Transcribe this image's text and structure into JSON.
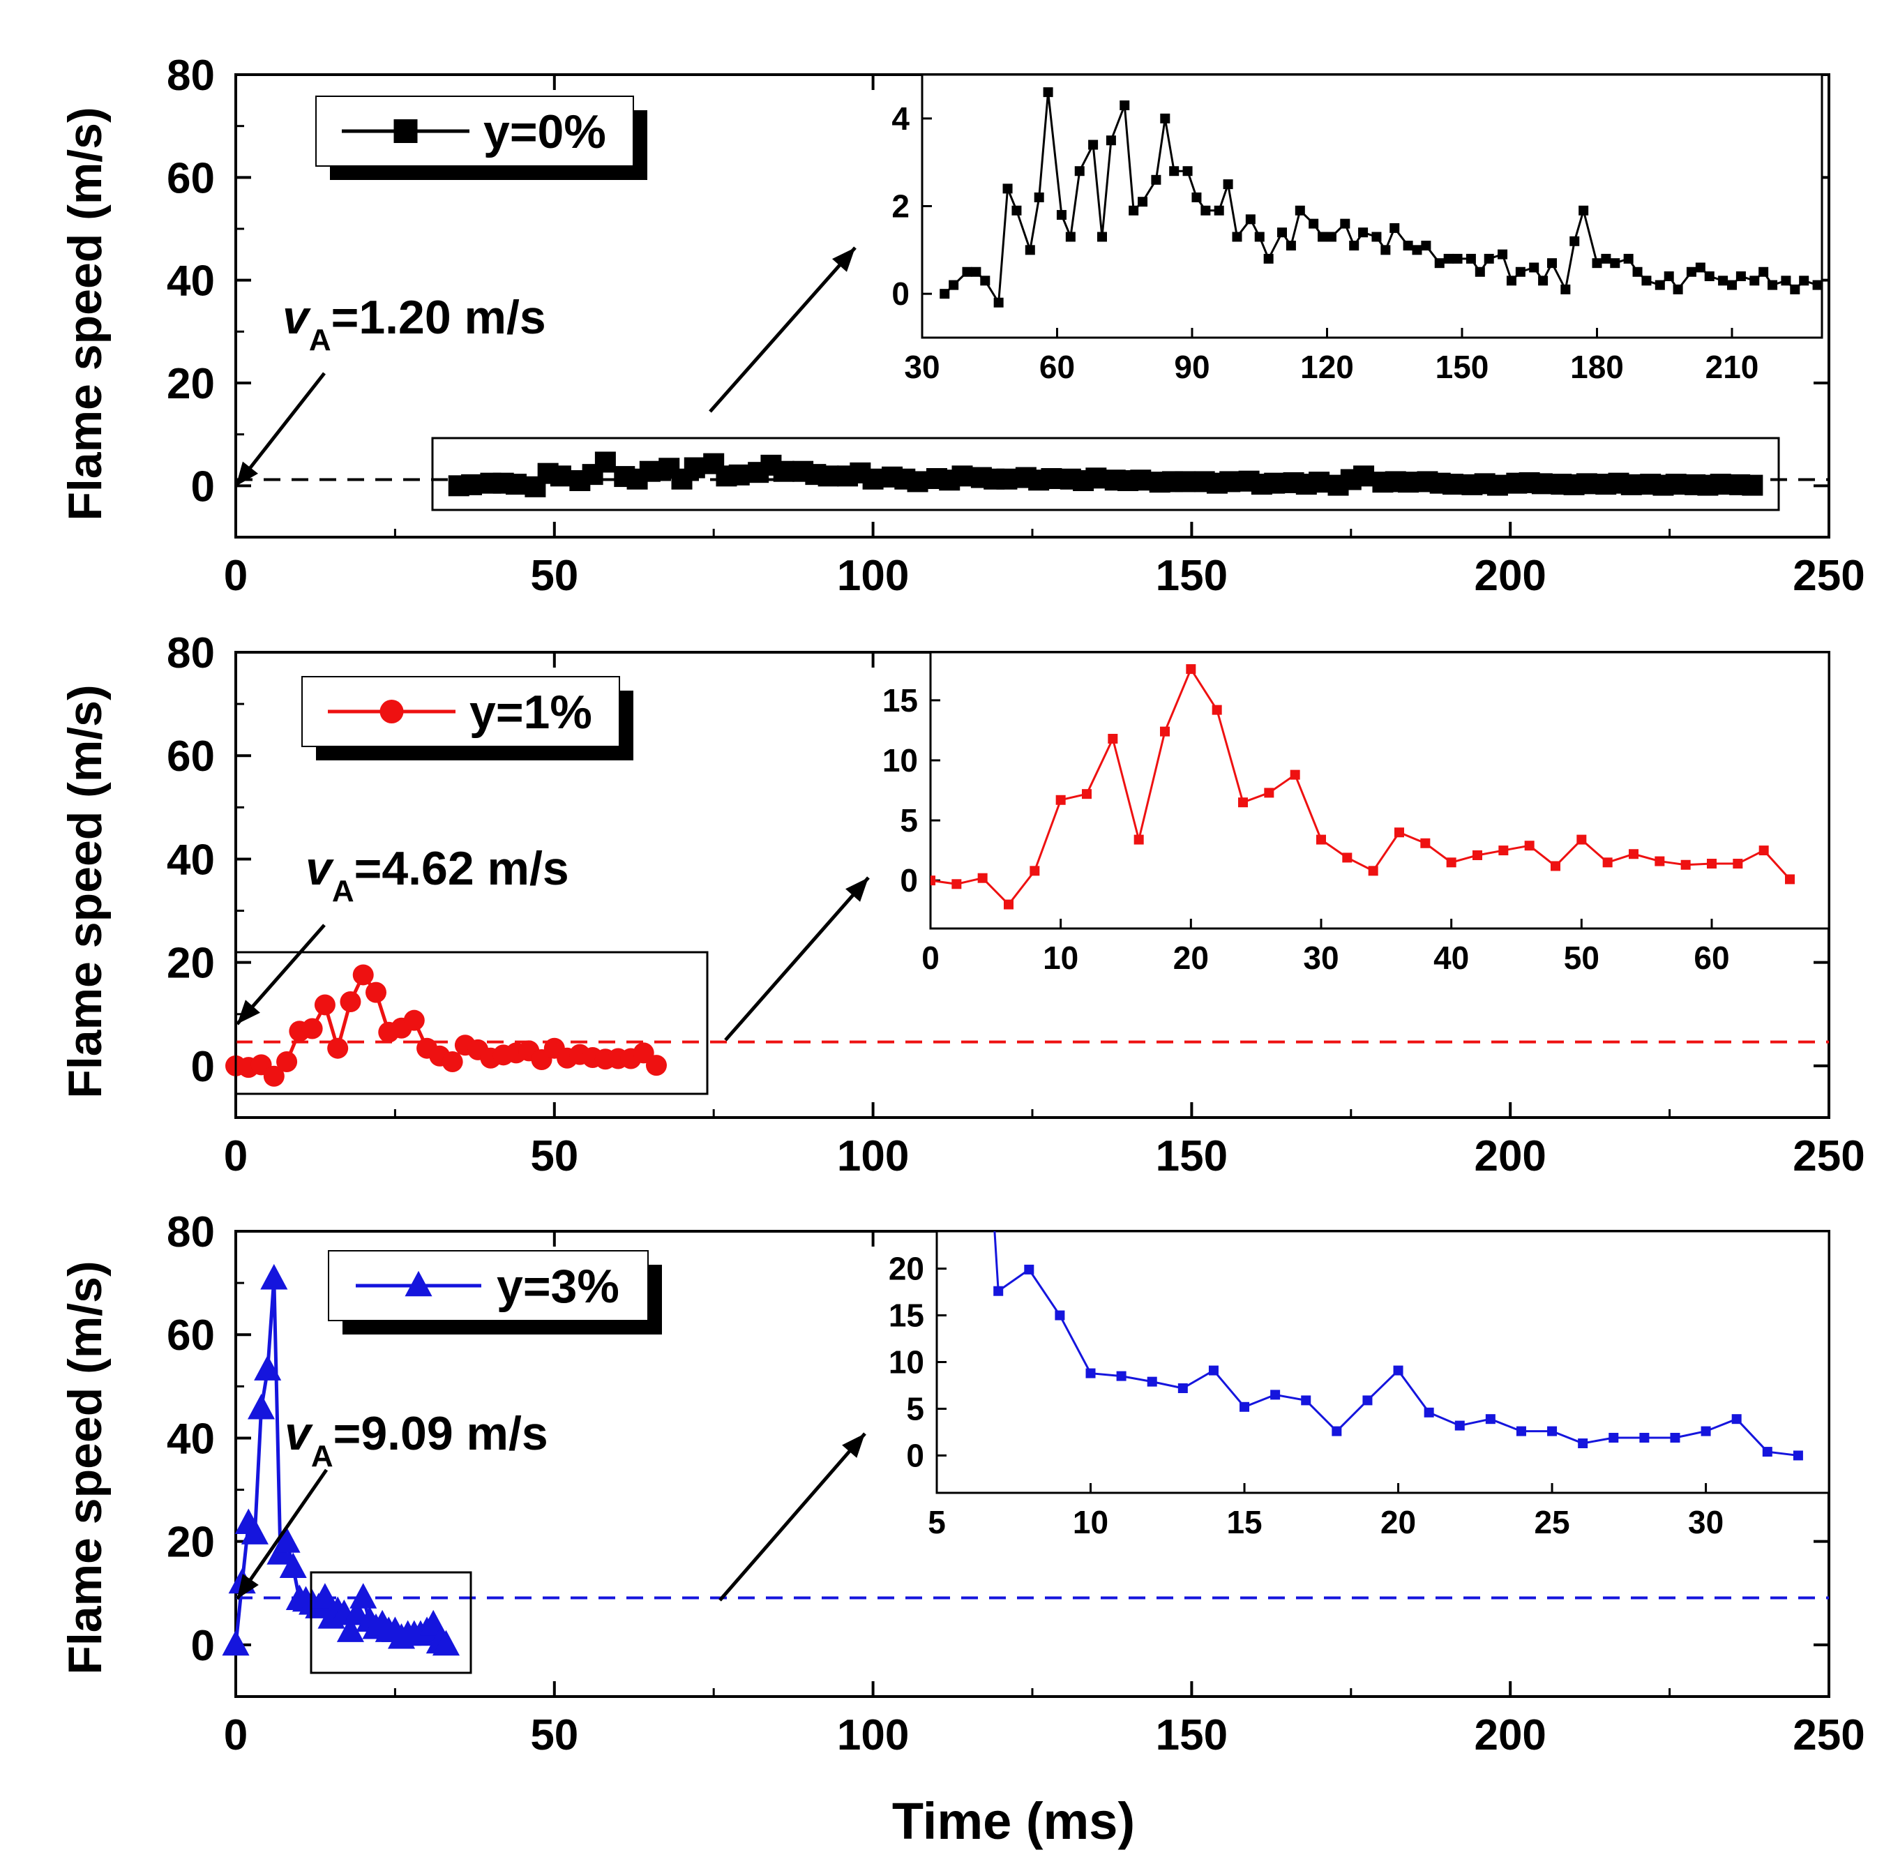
{
  "figure": {
    "xlabel": "Time (ms)",
    "ylabel": "Flame speed (m/s)",
    "panel_count": 3
  },
  "chart_data": [
    {
      "type": "line",
      "panel": "y=0%",
      "series_name": "y=0%",
      "color": "#000000",
      "marker": "square",
      "xlim": [
        0,
        250
      ],
      "ylim": [
        -10,
        80
      ],
      "xticks": [
        "0",
        "50",
        "100",
        "150",
        "200",
        "250"
      ],
      "yticks": [
        "0",
        "20",
        "40",
        "60",
        "80"
      ],
      "xlabel": "",
      "ylabel": "Flame speed (m/s)",
      "annotation": {
        "prefix": "v",
        "subscript": "A",
        "text": "=1.20 m/s",
        "value": 1.2
      },
      "x": [
        35,
        37,
        40,
        42,
        44,
        47,
        49,
        51,
        54,
        56,
        58,
        61,
        63,
        65,
        68,
        70,
        72,
        75,
        77,
        79,
        82,
        84,
        86,
        89,
        91,
        93,
        96,
        98,
        100,
        103,
        105,
        107,
        110,
        112,
        114,
        117,
        119,
        121,
        124,
        126,
        128,
        131,
        133,
        135,
        138,
        140,
        142,
        145,
        147,
        149,
        152,
        154,
        156,
        159,
        161,
        163,
        166,
        168,
        170,
        173,
        175,
        177,
        180,
        182,
        184,
        187,
        189,
        191,
        194,
        196,
        198,
        201,
        203,
        205,
        208,
        210,
        212,
        215,
        217,
        219,
        222,
        224,
        226,
        229,
        231,
        233,
        236,
        238
      ],
      "values": [
        0.0,
        0.2,
        0.5,
        0.5,
        0.3,
        -0.2,
        2.4,
        1.9,
        1.0,
        2.2,
        4.6,
        1.8,
        1.3,
        2.8,
        3.4,
        1.3,
        3.5,
        4.3,
        1.9,
        2.1,
        2.6,
        4.0,
        2.8,
        2.8,
        2.2,
        1.9,
        1.9,
        2.5,
        1.3,
        1.7,
        1.3,
        0.8,
        1.4,
        1.1,
        1.9,
        1.6,
        1.3,
        1.3,
        1.6,
        1.1,
        1.4,
        1.3,
        1.0,
        1.5,
        1.1,
        1.0,
        1.1,
        0.7,
        0.8,
        0.8,
        0.8,
        0.5,
        0.8,
        0.9,
        0.3,
        0.5,
        0.6,
        0.3,
        0.7,
        0.1,
        1.2,
        1.9,
        0.7,
        0.8,
        0.7,
        0.8,
        0.5,
        0.3,
        0.2,
        0.4,
        0.1,
        0.5,
        0.6,
        0.4,
        0.3,
        0.2,
        0.4,
        0.3,
        0.5,
        0.2,
        0.3,
        0.1,
        0.3,
        0.2,
        0.1,
        0.3,
        0.2,
        0.1
      ],
      "inset": {
        "xlim": [
          30,
          230
        ],
        "ylim": [
          -1,
          5
        ],
        "xticks": [
          "30",
          "60",
          "90",
          "120",
          "150",
          "180",
          "210"
        ],
        "yticks": [
          "0",
          "2",
          "4"
        ]
      }
    },
    {
      "type": "line",
      "panel": "y=1%",
      "series_name": "y=1%",
      "color": "#ee1111",
      "marker": "circle",
      "xlim": [
        0,
        250
      ],
      "ylim": [
        -10,
        80
      ],
      "xticks": [
        "0",
        "50",
        "100",
        "150",
        "200",
        "250"
      ],
      "yticks": [
        "0",
        "20",
        "40",
        "60",
        "80"
      ],
      "xlabel": "",
      "ylabel": "Flame speed (m/s)",
      "annotation": {
        "prefix": "v",
        "subscript": "A",
        "text": "=4.62 m/s",
        "value": 4.62
      },
      "x": [
        0,
        2,
        4,
        6,
        8,
        10,
        12,
        14,
        16,
        18,
        20,
        22,
        24,
        26,
        28,
        30,
        32,
        34,
        36,
        38,
        40,
        42,
        44,
        46,
        48,
        50,
        52,
        54,
        56,
        58,
        60,
        62,
        64,
        66
      ],
      "values": [
        0.0,
        -0.3,
        0.2,
        -2.0,
        0.8,
        6.7,
        7.2,
        11.8,
        3.4,
        12.4,
        17.6,
        14.2,
        6.5,
        7.3,
        8.8,
        3.4,
        1.9,
        0.8,
        4.0,
        3.1,
        1.5,
        2.1,
        2.5,
        2.9,
        1.2,
        3.4,
        1.5,
        2.2,
        1.6,
        1.3,
        1.4,
        1.4,
        2.5,
        0.1
      ],
      "inset": {
        "xlim": [
          0,
          69
        ],
        "ylim": [
          -4,
          19
        ],
        "xticks": [
          "0",
          "10",
          "20",
          "30",
          "40",
          "50",
          "60"
        ],
        "yticks": [
          "0",
          "5",
          "10",
          "15"
        ]
      }
    },
    {
      "type": "line",
      "panel": "y=3%",
      "series_name": "y=3%",
      "color": "#1515dd",
      "marker": "triangle",
      "xlim": [
        0,
        250
      ],
      "ylim": [
        -10,
        80
      ],
      "xticks": [
        "0",
        "50",
        "100",
        "150",
        "200",
        "250"
      ],
      "yticks": [
        "0",
        "20",
        "40",
        "60",
        "80"
      ],
      "xlabel": "Time (ms)",
      "ylabel": "Flame speed (m/s)",
      "annotation": {
        "prefix": "v",
        "subscript": "A",
        "text": "=9.09 m/s",
        "value": 9.09
      },
      "x": [
        0,
        1,
        2,
        3,
        4,
        5,
        6,
        7,
        8,
        9,
        10,
        11,
        12,
        13,
        14,
        15,
        16,
        17,
        18,
        19,
        20,
        21,
        22,
        23,
        24,
        25,
        26,
        27,
        28,
        29,
        30,
        31,
        32,
        33
      ],
      "values": [
        0.0,
        12.0,
        23.5,
        21.5,
        45.7,
        53.2,
        70.8,
        17.6,
        19.9,
        15.0,
        8.8,
        8.5,
        7.9,
        7.2,
        9.1,
        5.2,
        6.5,
        5.9,
        2.6,
        5.9,
        9.1,
        4.6,
        3.2,
        3.9,
        2.6,
        2.6,
        1.3,
        1.9,
        1.9,
        1.9,
        2.6,
        3.9,
        0.4,
        0.0
      ],
      "inset": {
        "xlim": [
          5,
          34
        ],
        "ylim": [
          -4,
          24
        ],
        "xticks": [
          "5",
          "10",
          "15",
          "20",
          "25",
          "30"
        ],
        "yticks": [
          "0",
          "5",
          "10",
          "15",
          "20"
        ]
      }
    }
  ]
}
